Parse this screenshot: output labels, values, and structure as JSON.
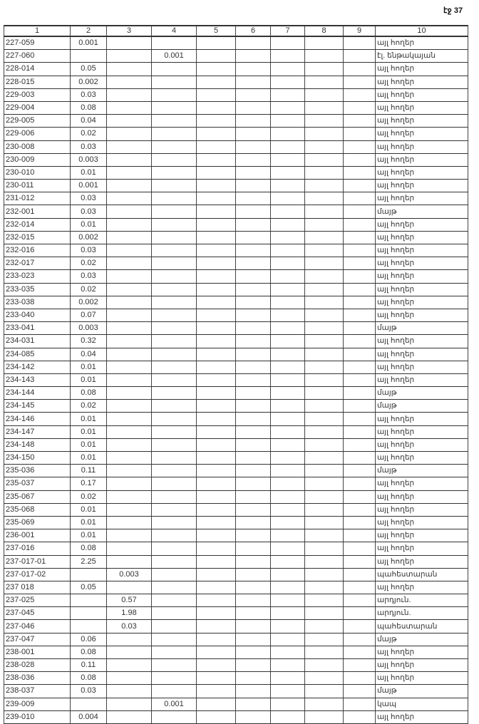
{
  "page_label": "էջ 37",
  "columns": [
    "1",
    "2",
    "3",
    "4",
    "5",
    "6",
    "7",
    "8",
    "9",
    "10"
  ],
  "rows": [
    [
      "227-059",
      "0.001",
      "",
      "",
      "",
      "",
      "",
      "",
      "",
      "այլ հողեր"
    ],
    [
      "227-060",
      "",
      "",
      "0.001",
      "",
      "",
      "",
      "",
      "",
      "էլ. ենթակայան"
    ],
    [
      "228-014",
      "0.05",
      "",
      "",
      "",
      "",
      "",
      "",
      "",
      "այլ հողեր"
    ],
    [
      "228-015",
      "0.002",
      "",
      "",
      "",
      "",
      "",
      "",
      "",
      "այլ հողեր"
    ],
    [
      "229-003",
      "0.03",
      "",
      "",
      "",
      "",
      "",
      "",
      "",
      "այլ հողեր"
    ],
    [
      "229-004",
      "0.08",
      "",
      "",
      "",
      "",
      "",
      "",
      "",
      "այլ հողեր"
    ],
    [
      "229-005",
      "0.04",
      "",
      "",
      "",
      "",
      "",
      "",
      "",
      "այլ հողեր"
    ],
    [
      "229-006",
      "0.02",
      "",
      "",
      "",
      "",
      "",
      "",
      "",
      "այլ հողեր"
    ],
    [
      "230-008",
      "0.03",
      "",
      "",
      "",
      "",
      "",
      "",
      "",
      "այլ հողեր"
    ],
    [
      "230-009",
      "0.003",
      "",
      "",
      "",
      "",
      "",
      "",
      "",
      "այլ հողեր"
    ],
    [
      "230-010",
      "0.01",
      "",
      "",
      "",
      "",
      "",
      "",
      "",
      "այլ հողեր"
    ],
    [
      "230-011",
      "0.001",
      "",
      "",
      "",
      "",
      "",
      "",
      "",
      "այլ հողեր"
    ],
    [
      "231-012",
      "0.03",
      "",
      "",
      "",
      "",
      "",
      "",
      "",
      "այլ հողեր"
    ],
    [
      "232-001",
      "0.03",
      "",
      "",
      "",
      "",
      "",
      "",
      "",
      "մայթ"
    ],
    [
      "232-014",
      "0.01",
      "",
      "",
      "",
      "",
      "",
      "",
      "",
      "այլ հողեր"
    ],
    [
      "232-015",
      "0.002",
      "",
      "",
      "",
      "",
      "",
      "",
      "",
      "այլ հողեր"
    ],
    [
      "232-016",
      "0.03",
      "",
      "",
      "",
      "",
      "",
      "",
      "",
      "այլ հողեր"
    ],
    [
      "232-017",
      "0.02",
      "",
      "",
      "",
      "",
      "",
      "",
      "",
      "այլ հողեր"
    ],
    [
      "233-023",
      "0.03",
      "",
      "",
      "",
      "",
      "",
      "",
      "",
      "այլ հողեր"
    ],
    [
      "233-035",
      "0.02",
      "",
      "",
      "",
      "",
      "",
      "",
      "",
      "այլ հողեր"
    ],
    [
      "233-038",
      "0.002",
      "",
      "",
      "",
      "",
      "",
      "",
      "",
      "այլ հողեր"
    ],
    [
      "233-040",
      "0.07",
      "",
      "",
      "",
      "",
      "",
      "",
      "",
      "այլ հողեր"
    ],
    [
      "233-041",
      "0.003",
      "",
      "",
      "",
      "",
      "",
      "",
      "",
      "մայթ"
    ],
    [
      "234-031",
      "0.32",
      "",
      "",
      "",
      "",
      "",
      "",
      "",
      "այլ հողեր"
    ],
    [
      "234-085",
      "0.04",
      "",
      "",
      "",
      "",
      "",
      "",
      "",
      "այլ հողեր"
    ],
    [
      "234-142",
      "0.01",
      "",
      "",
      "",
      "",
      "",
      "",
      "",
      "այլ հողեր"
    ],
    [
      "234-143",
      "0.01",
      "",
      "",
      "",
      "",
      "",
      "",
      "",
      "այլ հողեր"
    ],
    [
      "234-144",
      "0.08",
      "",
      "",
      "",
      "",
      "",
      "",
      "",
      "մայթ"
    ],
    [
      "234-145",
      "0.02",
      "",
      "",
      "",
      "",
      "",
      "",
      "",
      "մայթ"
    ],
    [
      "234-146",
      "0.01",
      "",
      "",
      "",
      "",
      "",
      "",
      "",
      "այլ հողեր"
    ],
    [
      "234-147",
      "0.01",
      "",
      "",
      "",
      "",
      "",
      "",
      "",
      "այլ հողեր"
    ],
    [
      "234-148",
      "0.01",
      "",
      "",
      "",
      "",
      "",
      "",
      "",
      "այլ հողեր"
    ],
    [
      "234-150",
      "0.01",
      "",
      "",
      "",
      "",
      "",
      "",
      "",
      "այլ հողեր"
    ],
    [
      "235-036",
      "0.11",
      "",
      "",
      "",
      "",
      "",
      "",
      "",
      "մայթ"
    ],
    [
      "235-037",
      "0.17",
      "",
      "",
      "",
      "",
      "",
      "",
      "",
      "այլ հողեր"
    ],
    [
      "235-067",
      "0.02",
      "",
      "",
      "",
      "",
      "",
      "",
      "",
      "այլ հողեր"
    ],
    [
      "235-068",
      "0.01",
      "",
      "",
      "",
      "",
      "",
      "",
      "",
      "այլ հողեր"
    ],
    [
      "235-069",
      "0.01",
      "",
      "",
      "",
      "",
      "",
      "",
      "",
      "այլ հողեր"
    ],
    [
      "236-001",
      "0.01",
      "",
      "",
      "",
      "",
      "",
      "",
      "",
      "այլ հողեր"
    ],
    [
      "237-016",
      "0.08",
      "",
      "",
      "",
      "",
      "",
      "",
      "",
      "այլ հողեր"
    ],
    [
      "237-017-01",
      "2.25",
      "",
      "",
      "",
      "",
      "",
      "",
      "",
      "այլ հողեր"
    ],
    [
      "237-017-02",
      "",
      "0.003",
      "",
      "",
      "",
      "",
      "",
      "",
      "պահեստարան"
    ],
    [
      "237 018",
      "0.05",
      "",
      "",
      "",
      "",
      "",
      "",
      "",
      "այլ հողեր"
    ],
    [
      "237-025",
      "",
      "0.57",
      "",
      "",
      "",
      "",
      "",
      "",
      "արդյուն."
    ],
    [
      "237-045",
      "",
      "1.98",
      "",
      "",
      "",
      "",
      "",
      "",
      "արդյուն."
    ],
    [
      "237-046",
      "",
      "0.03",
      "",
      "",
      "",
      "",
      "",
      "",
      "պահեստարան"
    ],
    [
      "237-047",
      "0.06",
      "",
      "",
      "",
      "",
      "",
      "",
      "",
      "մայթ"
    ],
    [
      "238-001",
      "0.08",
      "",
      "",
      "",
      "",
      "",
      "",
      "",
      "այլ հողեր"
    ],
    [
      "238-028",
      "0.11",
      "",
      "",
      "",
      "",
      "",
      "",
      "",
      "այլ հողեր"
    ],
    [
      "238-036",
      "0.08",
      "",
      "",
      "",
      "",
      "",
      "",
      "",
      "այլ հողեր"
    ],
    [
      "238-037",
      "0.03",
      "",
      "",
      "",
      "",
      "",
      "",
      "",
      "մայթ"
    ],
    [
      "239-009",
      "",
      "",
      "0.001",
      "",
      "",
      "",
      "",
      "",
      "կապ"
    ],
    [
      "239-010",
      "0.004",
      "",
      "",
      "",
      "",
      "",
      "",
      "",
      "այլ հողեր"
    ]
  ]
}
